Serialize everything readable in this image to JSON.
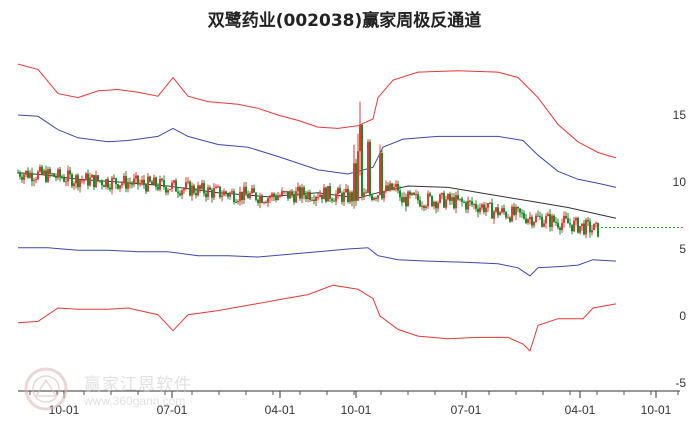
{
  "chart_data": {
    "type": "candlestick-channel",
    "title": "双鹭药业(002038)赢家周极反通道",
    "x_tick_labels": [
      "10-01",
      "07-01",
      "04-01",
      "10-01",
      "07-01",
      "04-01",
      "10-01"
    ],
    "y_ticks": [
      15,
      10,
      5,
      0,
      -5
    ],
    "ylim": [
      -5,
      19
    ],
    "grid": false,
    "last_price": 6.6,
    "channels": {
      "outer_upper": {
        "color": "#e53935",
        "values": [
          [
            0,
            18.8
          ],
          [
            20,
            18.4
          ],
          [
            40,
            16.6
          ],
          [
            60,
            16.3
          ],
          [
            80,
            16.8
          ],
          [
            100,
            16.9
          ],
          [
            120,
            16.7
          ],
          [
            140,
            16.4
          ],
          [
            155,
            17.8
          ],
          [
            170,
            16.4
          ],
          [
            190,
            16.0
          ],
          [
            220,
            15.8
          ],
          [
            240,
            15.5
          ],
          [
            260,
            15.0
          ],
          [
            280,
            14.6
          ],
          [
            300,
            14.1
          ],
          [
            320,
            14.0
          ],
          [
            340,
            14.2
          ],
          [
            355,
            14.7
          ],
          [
            360,
            16.3
          ],
          [
            375,
            17.6
          ],
          [
            400,
            18.2
          ],
          [
            440,
            18.3
          ],
          [
            480,
            18.2
          ],
          [
            500,
            17.8
          ],
          [
            520,
            16.3
          ],
          [
            540,
            14.3
          ],
          [
            560,
            13.0
          ],
          [
            580,
            12.2
          ],
          [
            598,
            11.8
          ]
        ]
      },
      "inner_upper": {
        "color": "#3949ab",
        "values": [
          [
            0,
            15.0
          ],
          [
            20,
            14.9
          ],
          [
            40,
            13.9
          ],
          [
            60,
            13.3
          ],
          [
            90,
            13.0
          ],
          [
            110,
            13.1
          ],
          [
            140,
            13.4
          ],
          [
            155,
            14.0
          ],
          [
            170,
            13.4
          ],
          [
            200,
            12.8
          ],
          [
            230,
            12.6
          ],
          [
            260,
            11.9
          ],
          [
            300,
            10.9
          ],
          [
            330,
            10.6
          ],
          [
            355,
            11.1
          ],
          [
            365,
            12.6
          ],
          [
            385,
            13.2
          ],
          [
            420,
            13.4
          ],
          [
            480,
            13.4
          ],
          [
            505,
            13.1
          ],
          [
            520,
            12.0
          ],
          [
            540,
            10.8
          ],
          [
            560,
            10.2
          ],
          [
            580,
            9.9
          ],
          [
            598,
            9.6
          ]
        ]
      },
      "middle": {
        "color": "#333333",
        "values": [
          [
            0,
            10.7
          ],
          [
            30,
            10.5
          ],
          [
            60,
            10.2
          ],
          [
            100,
            10.0
          ],
          [
            150,
            9.7
          ],
          [
            200,
            9.2
          ],
          [
            250,
            8.9
          ],
          [
            300,
            9.2
          ],
          [
            340,
            8.8
          ],
          [
            360,
            9.2
          ],
          [
            390,
            9.7
          ],
          [
            430,
            9.6
          ],
          [
            470,
            9.1
          ],
          [
            510,
            8.6
          ],
          [
            550,
            8.1
          ],
          [
            580,
            7.6
          ],
          [
            598,
            7.3
          ]
        ]
      },
      "inner_lower": {
        "color": "#3949ab",
        "values": [
          [
            0,
            5.1
          ],
          [
            30,
            5.1
          ],
          [
            60,
            4.9
          ],
          [
            90,
            4.9
          ],
          [
            120,
            4.8
          ],
          [
            150,
            4.8
          ],
          [
            180,
            4.5
          ],
          [
            210,
            4.5
          ],
          [
            240,
            4.4
          ],
          [
            270,
            4.6
          ],
          [
            300,
            4.8
          ],
          [
            330,
            5.0
          ],
          [
            350,
            5.1
          ],
          [
            360,
            4.5
          ],
          [
            380,
            4.2
          ],
          [
            410,
            4.1
          ],
          [
            450,
            4.0
          ],
          [
            480,
            3.9
          ],
          [
            500,
            3.6
          ],
          [
            512,
            3.0
          ],
          [
            520,
            3.6
          ],
          [
            545,
            3.7
          ],
          [
            560,
            3.8
          ],
          [
            575,
            4.2
          ],
          [
            598,
            4.1
          ]
        ]
      },
      "outer_lower": {
        "color": "#e53935",
        "values": [
          [
            0,
            -0.5
          ],
          [
            20,
            -0.4
          ],
          [
            40,
            0.6
          ],
          [
            60,
            0.5
          ],
          [
            90,
            0.5
          ],
          [
            110,
            0.6
          ],
          [
            140,
            0.1
          ],
          [
            155,
            -1.1
          ],
          [
            170,
            0.1
          ],
          [
            200,
            0.4
          ],
          [
            230,
            0.8
          ],
          [
            260,
            1.2
          ],
          [
            290,
            1.6
          ],
          [
            315,
            2.3
          ],
          [
            340,
            2.0
          ],
          [
            355,
            1.3
          ],
          [
            362,
            0.0
          ],
          [
            380,
            -1.0
          ],
          [
            400,
            -1.5
          ],
          [
            430,
            -1.7
          ],
          [
            460,
            -1.6
          ],
          [
            490,
            -1.6
          ],
          [
            505,
            -2.1
          ],
          [
            512,
            -2.6
          ],
          [
            520,
            -0.7
          ],
          [
            540,
            -0.2
          ],
          [
            565,
            -0.2
          ],
          [
            575,
            0.6
          ],
          [
            598,
            0.9
          ]
        ]
      }
    }
  },
  "watermark": {
    "brand": "赢家江恩软件",
    "url": "www.360gann.com"
  }
}
